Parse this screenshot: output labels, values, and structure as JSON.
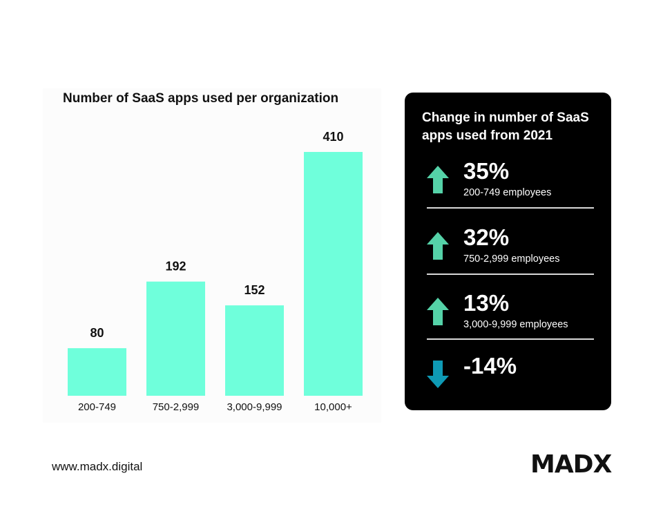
{
  "chart_data": {
    "type": "bar",
    "title": "Number of SaaS apps used per organization",
    "categories": [
      "200-749",
      "750-2,999",
      "3,000-9,999",
      "10,000+"
    ],
    "values": [
      80,
      192,
      152,
      410
    ],
    "xlabel": "",
    "ylabel": "",
    "ylim": [
      0,
      410
    ],
    "grid": false,
    "bar_color": "#6FFFDB"
  },
  "change_panel": {
    "title": "Change in number of SaaS apps used from 2021",
    "items": [
      {
        "percent": "35%",
        "label": "200-749 employees",
        "direction": "up",
        "arrow_color": "#55D2A8",
        "icon": "arrow-up-icon"
      },
      {
        "percent": "32%",
        "label": "750-2,999 employees",
        "direction": "up",
        "arrow_color": "#55D2A8",
        "icon": "arrow-up-icon"
      },
      {
        "percent": "13%",
        "label": "3,000-9,999 employees",
        "direction": "up",
        "arrow_color": "#55D2A8",
        "icon": "arrow-up-icon"
      },
      {
        "percent": "-14%",
        "label": "",
        "direction": "down",
        "arrow_color": "#0E9AB5",
        "icon": "arrow-down-icon"
      }
    ]
  },
  "footer": {
    "url": "www.madx.digital",
    "logo": "MADX"
  }
}
